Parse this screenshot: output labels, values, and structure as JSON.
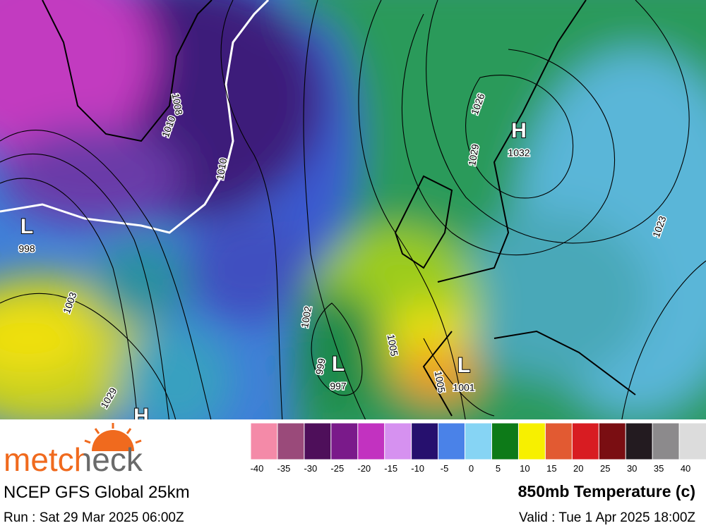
{
  "map": {
    "pressure_centers": [
      {
        "symbol": "H",
        "value": 1032
      },
      {
        "symbol": "L",
        "value": 997
      },
      {
        "symbol": "L",
        "value": 1001
      },
      {
        "symbol": "L",
        "value": 998
      },
      {
        "symbol": "H"
      }
    ],
    "isobar_labels": [
      1026,
      1029,
      1002,
      999,
      1005,
      1005,
      1003,
      1029,
      1023,
      1008,
      1010,
      1010
    ]
  },
  "legend": {
    "labels": [
      -40,
      -35,
      -30,
      -25,
      -20,
      -15,
      -10,
      -5,
      0,
      5,
      10,
      15,
      20,
      25,
      30,
      35,
      40
    ],
    "colors": [
      "#f48aa8",
      "#9a4a7a",
      "#4e0f5a",
      "#7a1a8a",
      "#c232c0",
      "#d691f0",
      "#26106e",
      "#4a82e8",
      "#86d4f4",
      "#0d7a18",
      "#f7f000",
      "#e25a32",
      "#d81c22",
      "#7a0e12",
      "#231b20",
      "#8c8a8c",
      "#dcdcdc"
    ]
  },
  "footer": {
    "brand": "metcheck",
    "model": "NCEP GFS Global 25km",
    "run": "Run : Sat 29 Mar 2025 06:00Z",
    "field": "850mb Temperature (c)",
    "valid": "Valid : Tue 1 Apr 2025 18:00Z"
  }
}
